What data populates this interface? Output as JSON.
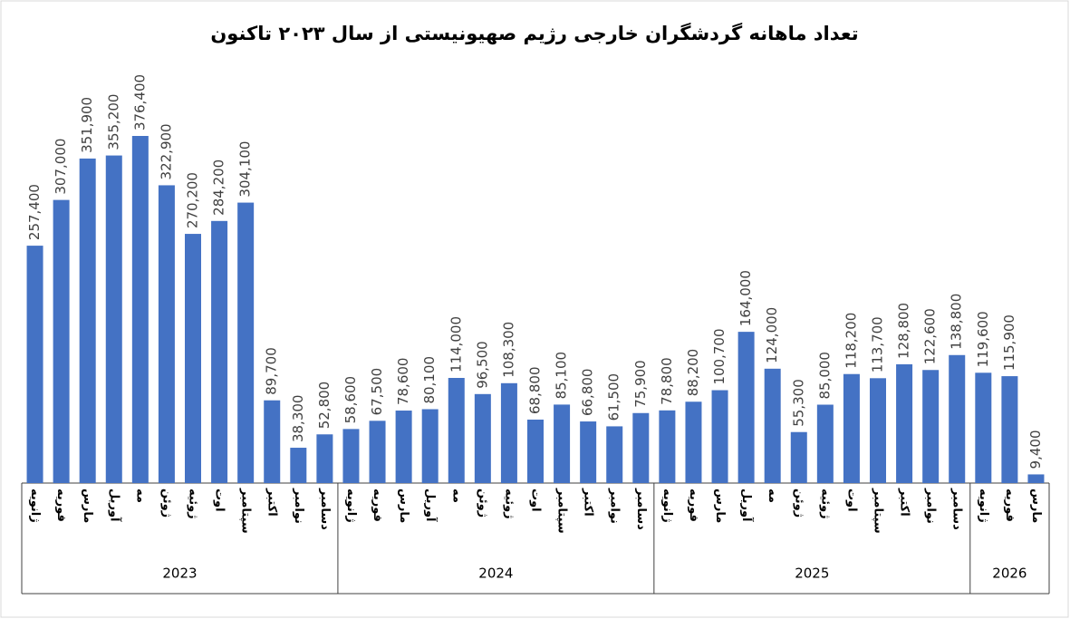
{
  "chart_data": {
    "type": "bar",
    "title": "تعداد ماهانه گردشگران خارجی رژیم صهیونیستی از سال ۲۰۲۳ تاکنون",
    "color": "#4472c4",
    "groups": [
      {
        "label": "2023",
        "categories": [
          "ژانویه",
          "فوریه",
          "مارس",
          "آوریل",
          "مه",
          "ژوئن",
          "ژوئیه",
          "اوت",
          "سپتامبر",
          "اکتبر",
          "نوامبر",
          "دسامبر"
        ],
        "values": [
          257400,
          307000,
          351900,
          355200,
          376400,
          322900,
          270200,
          284200,
          304100,
          89700,
          38300,
          52800
        ],
        "value_labels": [
          "257,400",
          "307,000",
          "351,900",
          "355,200",
          "376,400",
          "322,900",
          "270,200",
          "284,200",
          "304,100",
          "89,700",
          "38,300",
          "52,800"
        ]
      },
      {
        "label": "2024",
        "categories": [
          "ژانویه",
          "فوریه",
          "مارس",
          "آوریل",
          "مه",
          "ژوئن",
          "ژوئیه",
          "اوت",
          "سپتامبر",
          "اکتبر",
          "نوامبر",
          "دسامبر"
        ],
        "values": [
          58600,
          67500,
          78600,
          80100,
          114000,
          96500,
          108300,
          68800,
          85100,
          66800,
          61500,
          75900
        ],
        "value_labels": [
          "58,600",
          "67,500",
          "78,600",
          "80,100",
          "114,000",
          "96,500",
          "108,300",
          "68,800",
          "85,100",
          "66,800",
          "61,500",
          "75,900"
        ]
      },
      {
        "label": "2025",
        "categories": [
          "ژانویه",
          "فوریه",
          "مارس",
          "آوریل",
          "مه",
          "ژوئن",
          "ژوئیه",
          "اوت",
          "سپتامبر",
          "اکتبر",
          "نوامبر",
          "دسامبر"
        ],
        "values": [
          78800,
          88200,
          100700,
          164000,
          124000,
          55300,
          85000,
          118200,
          113700,
          128800,
          122600,
          138800
        ],
        "value_labels": [
          "78,800",
          "88,200",
          "100,700",
          "164,000",
          "124,000",
          "55,300",
          "85,000",
          "118,200",
          "113,700",
          "128,800",
          "122,600",
          "138,800"
        ]
      },
      {
        "label": "2026",
        "categories": [
          "ژانویه",
          "فوریه",
          "مارس"
        ],
        "values": [
          119600,
          115900,
          9400
        ],
        "value_labels": [
          "119,600",
          "115,900",
          "9,400"
        ]
      }
    ]
  }
}
